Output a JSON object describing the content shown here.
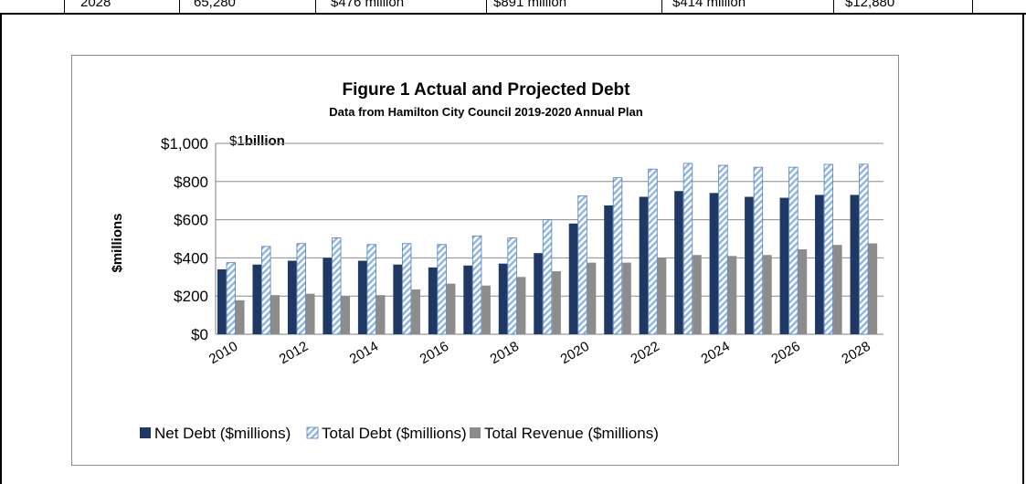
{
  "table_strip": {
    "cells": [
      "2028",
      "65,280",
      "$476 million",
      "$891 million",
      "$414 million",
      "$12,880"
    ]
  },
  "chart_data": {
    "type": "bar",
    "title": "Figure 1   Actual and Projected Debt",
    "subtitle": "Data from Hamilton City Council 2019-2020  Annual Plan",
    "annotation": {
      "prefix": "$1",
      "bold": "billion"
    },
    "ylabel": "$millions",
    "xlabel": "",
    "ylim": [
      0,
      1000
    ],
    "yticks": [
      0,
      200,
      400,
      600,
      800,
      1000
    ],
    "ytick_labels": [
      "$0",
      "$200",
      "$400",
      "$600",
      "$800",
      "$1,000"
    ],
    "grid": true,
    "legend_position": "bottom",
    "categories": [
      2010,
      2011,
      2012,
      2013,
      2014,
      2015,
      2016,
      2017,
      2018,
      2019,
      2020,
      2021,
      2022,
      2023,
      2024,
      2025,
      2026,
      2027,
      2028
    ],
    "xtick_labels": [
      "2010",
      "2012",
      "2014",
      "2016",
      "2018",
      "2020",
      "2022",
      "2024",
      "2026",
      "2028"
    ],
    "series": [
      {
        "name": "Net Debt ($millions)",
        "color": "#1f3864",
        "style": "solid",
        "values": [
          340,
          365,
          385,
          400,
          385,
          365,
          350,
          360,
          370,
          425,
          580,
          675,
          720,
          750,
          740,
          720,
          715,
          730,
          730
        ]
      },
      {
        "name": "Total Debt ($millions)",
        "color": "#8eb4e3",
        "style": "hatched",
        "values": [
          375,
          460,
          475,
          505,
          470,
          475,
          470,
          515,
          505,
          600,
          725,
          820,
          865,
          895,
          885,
          875,
          875,
          890,
          891
        ]
      },
      {
        "name": "Total Revenue ($millions)",
        "color": "#8c8c8c",
        "style": "solid",
        "values": [
          178,
          205,
          212,
          198,
          205,
          235,
          265,
          255,
          300,
          330,
          375,
          375,
          400,
          415,
          410,
          415,
          445,
          468,
          476
        ]
      }
    ]
  }
}
